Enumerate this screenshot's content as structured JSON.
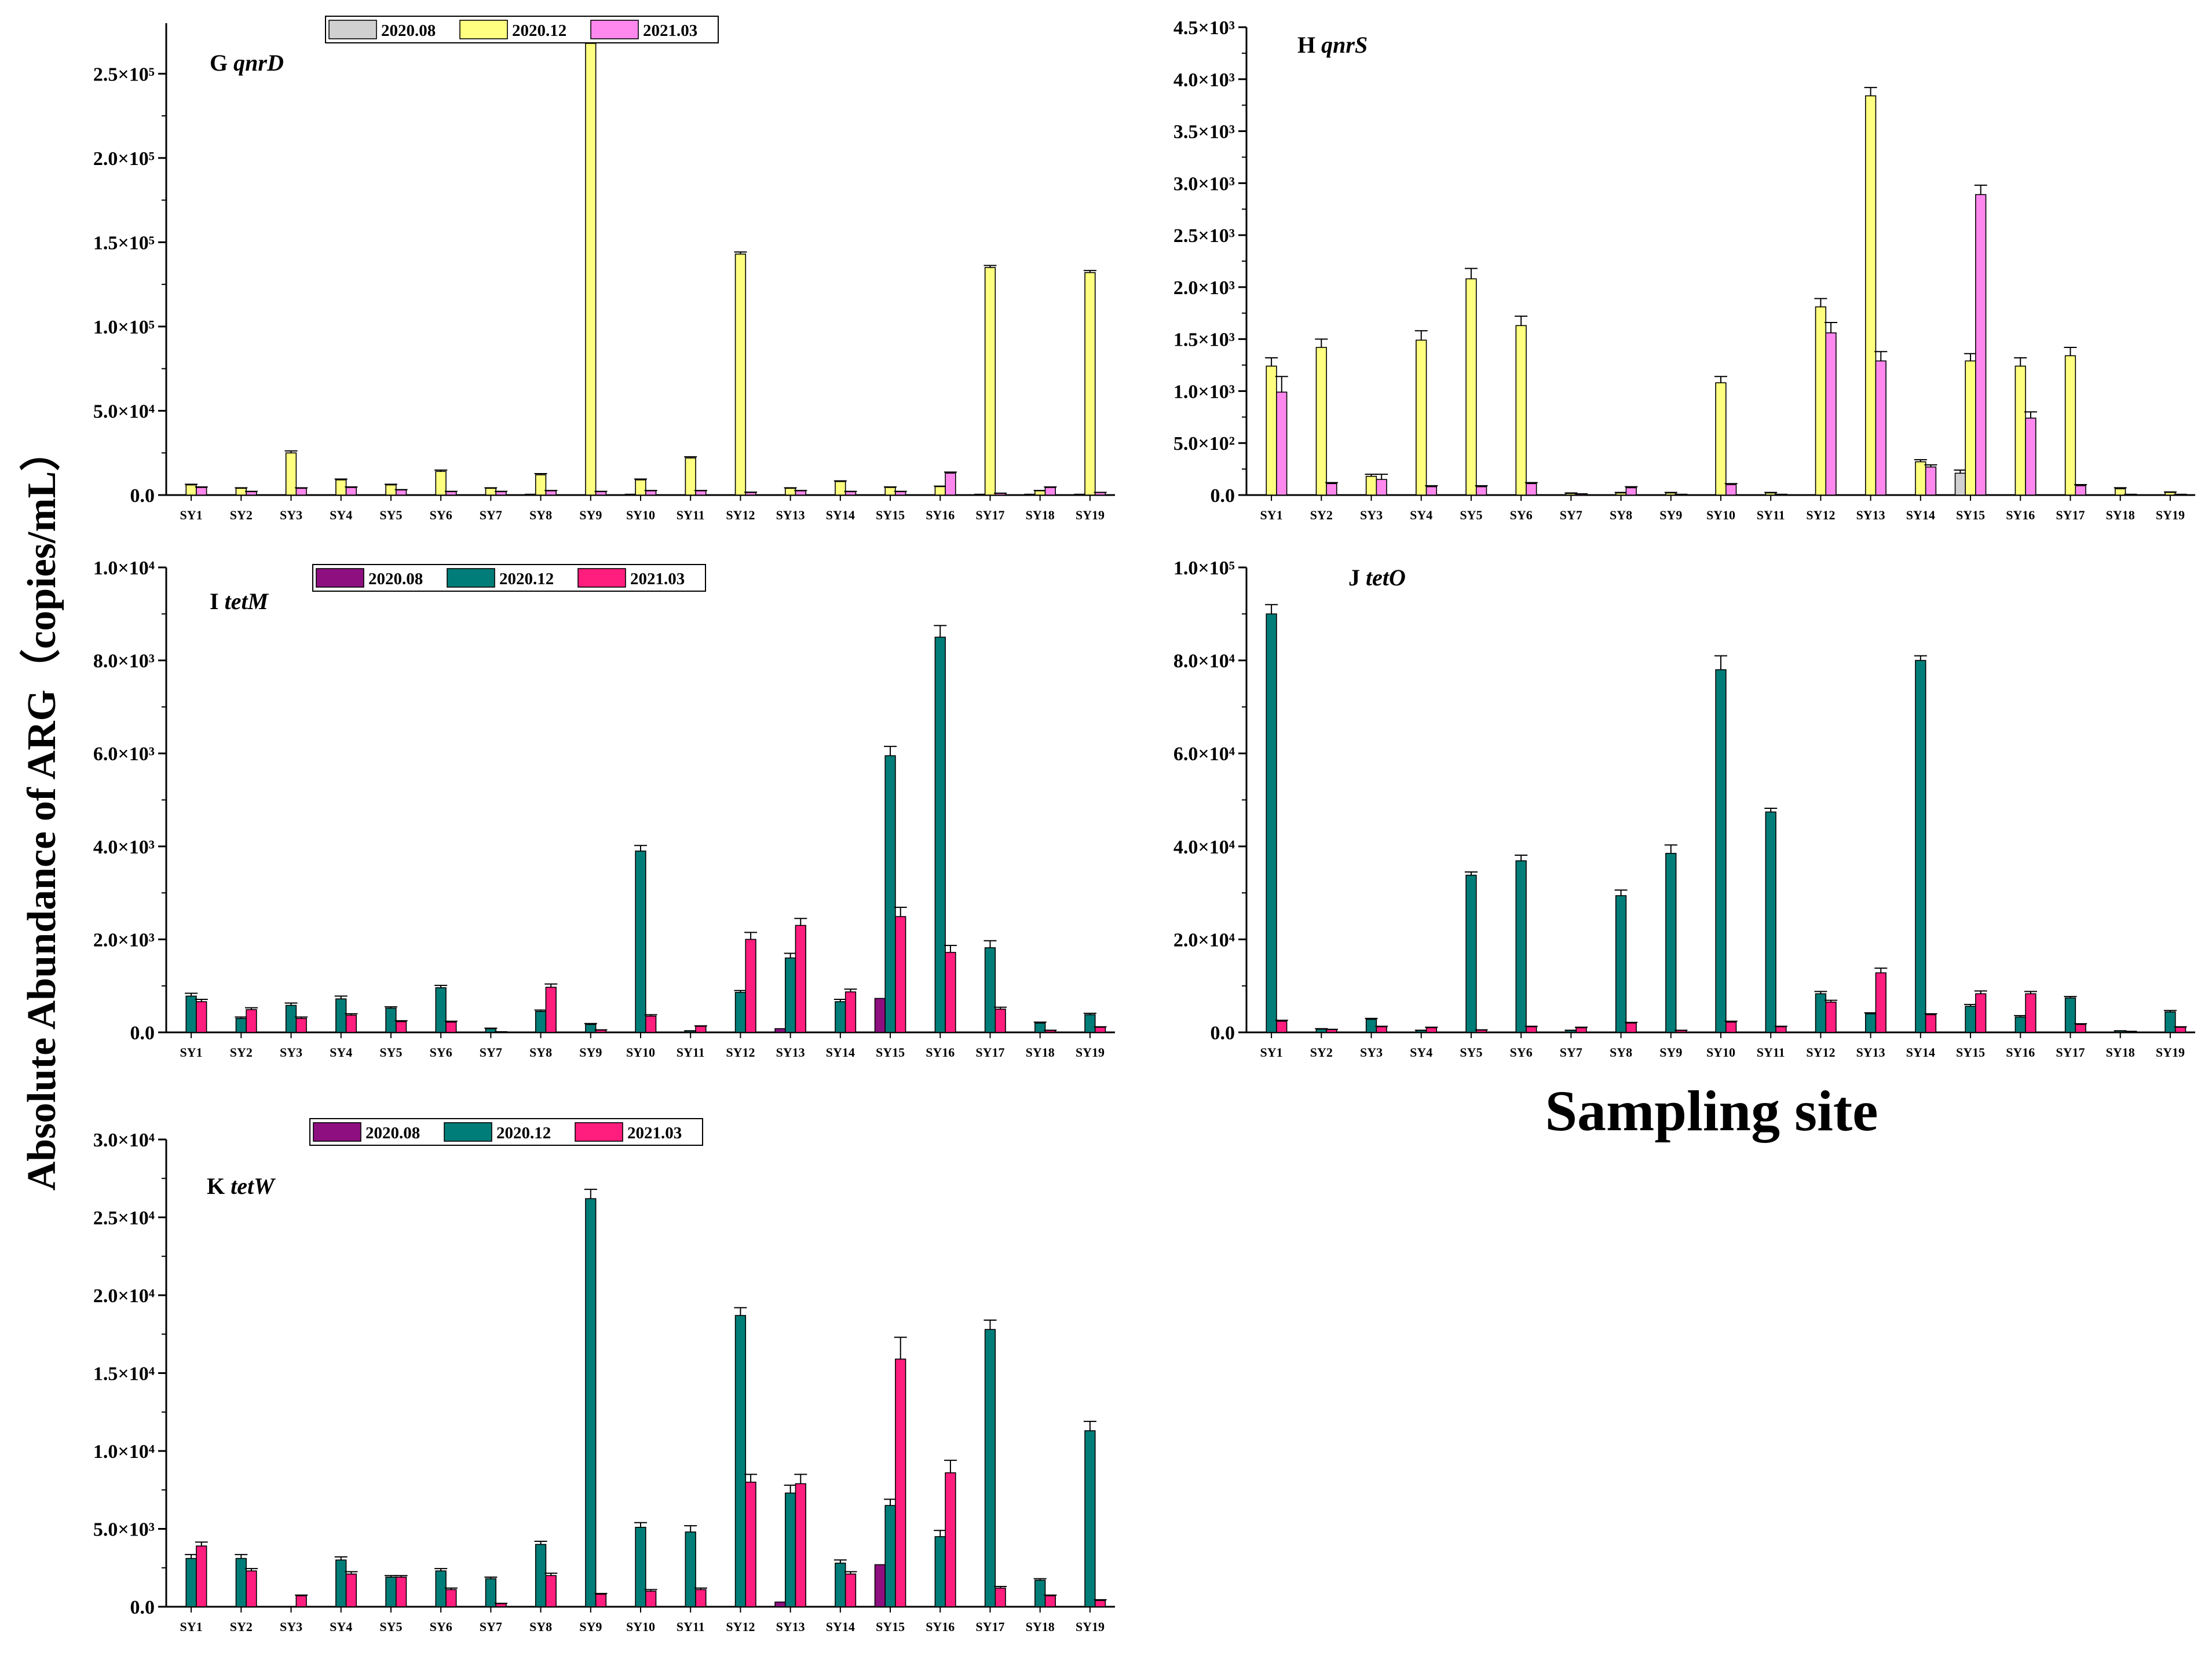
{
  "shared": {
    "ylabel": "Absolute Abundance of ARG（copies/mL）",
    "xlabel": "Sampling site",
    "categories": [
      "SY1",
      "SY2",
      "SY3",
      "SY4",
      "SY5",
      "SY6",
      "SY7",
      "SY8",
      "SY9",
      "SY10",
      "SY11",
      "SY12",
      "SY13",
      "SY14",
      "SY15",
      "SY16",
      "SY17",
      "SY18",
      "SY19"
    ]
  },
  "colors": {
    "q_2020_08": "#d0d0d0",
    "q_2020_12": "#ffff80",
    "q_2021_03": "#ff88ee",
    "t_2020_08": "#8e1080",
    "t_2020_12": "#007d78",
    "t_2021_03": "#ff1d7e"
  },
  "chart_data": [
    {
      "id": "G",
      "type": "bar",
      "label": "G",
      "gene": "qnrD",
      "legend": true,
      "ylim": [
        0,
        280000
      ],
      "yticks": [
        0,
        50000,
        100000,
        150000,
        200000,
        250000
      ],
      "ytick_labels": [
        "0.0",
        "5.0×10⁴",
        "1.0×10⁵",
        "1.5×10⁵",
        "2.0×10⁵",
        "2.5×10⁵"
      ],
      "series": [
        {
          "name": "2020.08",
          "color_key": "q_2020_08",
          "values": [
            0,
            0,
            0,
            0,
            0,
            0,
            0,
            500,
            0,
            500,
            0,
            0,
            0,
            0,
            0,
            0,
            500,
            500,
            500
          ],
          "errors": [
            0,
            0,
            0,
            0,
            0,
            0,
            0,
            0,
            0,
            0,
            0,
            0,
            0,
            0,
            0,
            0,
            0,
            0,
            0
          ]
        },
        {
          "name": "2020.12",
          "color_key": "q_2020_12",
          "values": [
            6000,
            4000,
            25000,
            9000,
            6000,
            14000,
            4000,
            12000,
            268000,
            9000,
            22000,
            143000,
            4000,
            8000,
            4500,
            5000,
            135000,
            2500,
            132000
          ],
          "errors": [
            400,
            300,
            1200,
            500,
            400,
            800,
            300,
            700,
            1500,
            500,
            700,
            1200,
            300,
            400,
            300,
            300,
            1200,
            200,
            1200
          ]
        },
        {
          "name": "2021.03",
          "color_key": "q_2021_03",
          "values": [
            4500,
            2000,
            4000,
            4500,
            3000,
            2000,
            2000,
            2500,
            2000,
            2500,
            2500,
            1500,
            2500,
            2000,
            2000,
            13000,
            1000,
            4500,
            1500
          ],
          "errors": [
            300,
            200,
            300,
            300,
            200,
            200,
            200,
            200,
            200,
            200,
            200,
            200,
            200,
            200,
            200,
            600,
            100,
            300,
            100
          ]
        }
      ]
    },
    {
      "id": "H",
      "type": "bar",
      "label": "H",
      "gene": "qnrS",
      "legend": false,
      "ylim": [
        0,
        4500
      ],
      "yticks": [
        0,
        500,
        1000,
        1500,
        2000,
        2500,
        3000,
        3500,
        4000,
        4500
      ],
      "ytick_labels": [
        "0.0",
        "5.0×10²",
        "1.0×10³",
        "1.5×10³",
        "2.0×10³",
        "2.5×10³",
        "3.0×10³",
        "3.5×10³",
        "4.0×10³",
        "4.5×10³"
      ],
      "series": [
        {
          "name": "2020.08",
          "color_key": "q_2020_08",
          "values": [
            0,
            0,
            0,
            0,
            0,
            0,
            0,
            0,
            0,
            0,
            0,
            0,
            0,
            0,
            210,
            0,
            0,
            0,
            0
          ],
          "errors": [
            0,
            0,
            0,
            0,
            0,
            0,
            0,
            0,
            0,
            0,
            0,
            0,
            0,
            0,
            30,
            0,
            0,
            0,
            0
          ]
        },
        {
          "name": "2020.12",
          "color_key": "q_2020_12",
          "values": [
            1240,
            1420,
            180,
            1490,
            2080,
            1630,
            15,
            20,
            20,
            1080,
            20,
            1810,
            3840,
            320,
            1290,
            1240,
            1340,
            60,
            25
          ],
          "errors": [
            80,
            80,
            20,
            90,
            100,
            90,
            5,
            5,
            5,
            60,
            5,
            80,
            80,
            20,
            70,
            80,
            80,
            10,
            5
          ]
        },
        {
          "name": "2021.03",
          "color_key": "q_2021_03",
          "values": [
            990,
            110,
            150,
            80,
            80,
            110,
            10,
            70,
            5,
            100,
            5,
            1560,
            1290,
            270,
            2890,
            740,
            90,
            5,
            5
          ],
          "errors": [
            150,
            10,
            50,
            10,
            10,
            10,
            2,
            10,
            2,
            10,
            2,
            100,
            90,
            20,
            90,
            60,
            10,
            2,
            2
          ]
        }
      ]
    },
    {
      "id": "I",
      "type": "bar",
      "label": "I",
      "gene": "tetM",
      "legend": true,
      "ylim": [
        0,
        10000
      ],
      "yticks": [
        0,
        2000,
        4000,
        6000,
        8000,
        10000
      ],
      "ytick_labels": [
        "0.0",
        "2.0×10³",
        "4.0×10³",
        "6.0×10³",
        "8.0×10³",
        "1.0×10⁴"
      ],
      "series": [
        {
          "name": "2020.08",
          "color_key": "t_2020_08",
          "values": [
            0,
            0,
            0,
            0,
            0,
            0,
            0,
            0,
            0,
            0,
            0,
            0,
            80,
            0,
            730,
            0,
            0,
            0,
            0
          ],
          "errors": [
            0,
            0,
            0,
            0,
            0,
            0,
            0,
            0,
            0,
            0,
            0,
            0,
            0,
            0,
            0,
            0,
            0,
            0,
            0
          ]
        },
        {
          "name": "2020.12",
          "color_key": "t_2020_12",
          "values": [
            780,
            300,
            580,
            720,
            520,
            960,
            80,
            450,
            170,
            3900,
            30,
            860,
            1600,
            660,
            5950,
            8500,
            1820,
            200,
            380
          ],
          "errors": [
            60,
            30,
            50,
            60,
            30,
            50,
            10,
            30,
            20,
            120,
            5,
            40,
            100,
            50,
            200,
            250,
            150,
            20,
            30
          ]
        },
        {
          "name": "2021.03",
          "color_key": "t_2021_03",
          "values": [
            660,
            490,
            300,
            370,
            230,
            220,
            10,
            970,
            50,
            350,
            130,
            2000,
            2300,
            870,
            2490,
            1720,
            500,
            40,
            110
          ],
          "errors": [
            50,
            40,
            30,
            30,
            20,
            20,
            2,
            70,
            5,
            30,
            10,
            150,
            150,
            60,
            200,
            150,
            40,
            5,
            10
          ]
        }
      ]
    },
    {
      "id": "J",
      "type": "bar",
      "label": "J",
      "gene": "tetO",
      "legend": false,
      "ylim": [
        0,
        100000
      ],
      "yticks": [
        0,
        20000,
        40000,
        60000,
        80000,
        100000
      ],
      "ytick_labels": [
        "0.0",
        "2.0×10⁴",
        "4.0×10⁴",
        "6.0×10⁴",
        "8.0×10⁴",
        "1.0×10⁵"
      ],
      "series": [
        {
          "name": "2020.08",
          "color_key": "t_2020_08",
          "values": [
            0,
            0,
            0,
            0,
            0,
            0,
            0,
            0,
            0,
            0,
            0,
            0,
            0,
            0,
            0,
            0,
            0,
            0,
            0
          ],
          "errors": [
            0,
            0,
            0,
            0,
            0,
            0,
            0,
            0,
            0,
            0,
            0,
            0,
            0,
            0,
            0,
            0,
            0,
            0,
            0
          ]
        },
        {
          "name": "2020.12",
          "color_key": "t_2020_12",
          "values": [
            90000,
            700,
            2800,
            400,
            33800,
            36900,
            400,
            29400,
            38500,
            78000,
            47400,
            8300,
            4000,
            80000,
            5600,
            3300,
            7400,
            300,
            4400
          ],
          "errors": [
            2000,
            100,
            200,
            50,
            700,
            1200,
            50,
            1200,
            1800,
            3000,
            800,
            500,
            200,
            1000,
            400,
            300,
            300,
            50,
            300
          ]
        },
        {
          "name": "2021.03",
          "color_key": "t_2021_03",
          "values": [
            2400,
            600,
            1200,
            1000,
            500,
            1200,
            1000,
            2000,
            400,
            2200,
            1200,
            6500,
            12800,
            3800,
            8300,
            8300,
            1700,
            200,
            1100
          ],
          "errors": [
            200,
            50,
            100,
            100,
            50,
            100,
            100,
            150,
            50,
            200,
            100,
            400,
            1000,
            200,
            600,
            500,
            150,
            20,
            100
          ]
        }
      ]
    },
    {
      "id": "K",
      "type": "bar",
      "label": "K",
      "gene": "tetW",
      "legend": true,
      "ylim": [
        0,
        30000
      ],
      "yticks": [
        0,
        5000,
        10000,
        15000,
        20000,
        25000,
        30000
      ],
      "ytick_labels": [
        "0.0",
        "5.0×10³",
        "1.0×10⁴",
        "1.5×10⁴",
        "2.0×10⁴",
        "2.5×10⁴",
        "3.0×10⁴"
      ],
      "series": [
        {
          "name": "2020.08",
          "color_key": "t_2020_08",
          "values": [
            0,
            0,
            0,
            0,
            0,
            0,
            0,
            0,
            0,
            0,
            0,
            0,
            300,
            0,
            2700,
            0,
            0,
            0,
            0
          ],
          "errors": [
            0,
            0,
            0,
            0,
            0,
            0,
            0,
            0,
            0,
            0,
            0,
            0,
            0,
            0,
            0,
            0,
            0,
            0,
            0
          ]
        },
        {
          "name": "2020.12",
          "color_key": "t_2020_12",
          "values": [
            3100,
            3100,
            0,
            3000,
            1900,
            2300,
            1800,
            4000,
            26200,
            5100,
            4800,
            18700,
            7300,
            2800,
            6500,
            4500,
            17800,
            1700,
            11300
          ],
          "errors": [
            250,
            250,
            0,
            200,
            100,
            150,
            100,
            200,
            600,
            300,
            400,
            500,
            500,
            200,
            400,
            400,
            600,
            100,
            600
          ]
        },
        {
          "name": "2021.03",
          "color_key": "t_2021_03",
          "values": [
            3900,
            2300,
            700,
            2100,
            1900,
            1100,
            200,
            2000,
            800,
            1000,
            1100,
            8000,
            7900,
            2100,
            15900,
            8600,
            1200,
            700,
            400
          ],
          "errors": [
            250,
            150,
            50,
            150,
            100,
            100,
            20,
            150,
            50,
            100,
            100,
            500,
            600,
            150,
            1400,
            800,
            100,
            50,
            50
          ]
        }
      ]
    }
  ]
}
